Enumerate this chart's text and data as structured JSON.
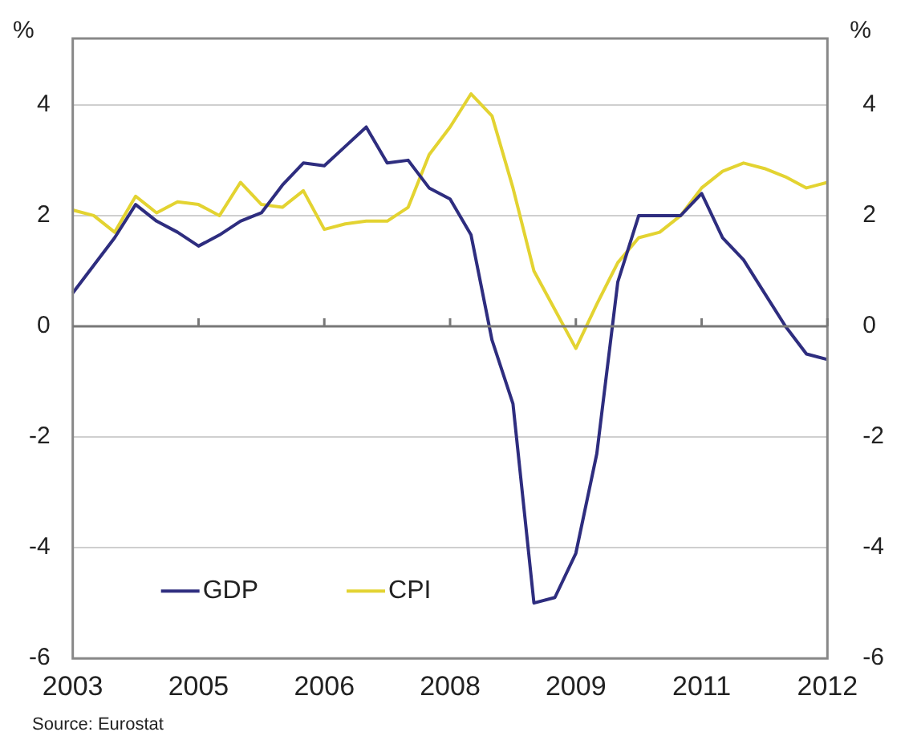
{
  "chart_data": {
    "type": "line",
    "ylabel": "%",
    "y2label": "%",
    "categories": [
      "2003",
      null,
      null,
      null,
      null,
      null,
      "2005",
      null,
      null,
      null,
      null,
      null,
      "2006",
      null,
      null,
      null,
      null,
      null,
      "2008",
      null,
      null,
      null,
      null,
      null,
      "2009",
      null,
      null,
      null,
      null,
      null,
      "2011",
      null,
      null,
      null,
      null,
      null,
      "2012"
    ],
    "series": [
      {
        "name": "GDP",
        "color": "#2e2d7f",
        "values": [
          0.6,
          1.1,
          1.6,
          2.2,
          1.9,
          1.7,
          1.45,
          1.65,
          1.9,
          2.05,
          2.55,
          2.95,
          2.9,
          3.25,
          3.6,
          2.95,
          3.0,
          2.5,
          2.3,
          1.65,
          -0.25,
          -1.4,
          -5.0,
          -4.9,
          -4.1,
          -2.3,
          0.8,
          2.0,
          2.0,
          2.0,
          2.4,
          1.6,
          1.2,
          0.6,
          0.0,
          -0.5,
          -0.6
        ]
      },
      {
        "name": "CPI",
        "color": "#e3d331",
        "values": [
          2.1,
          2.0,
          1.7,
          2.35,
          2.05,
          2.25,
          2.2,
          2.0,
          2.6,
          2.2,
          2.15,
          2.45,
          1.75,
          1.85,
          1.9,
          1.9,
          2.15,
          3.1,
          3.6,
          4.2,
          3.8,
          2.5,
          1.0,
          0.3,
          -0.4,
          0.4,
          1.15,
          1.6,
          1.7,
          2.0,
          2.5,
          2.8,
          2.95,
          2.85,
          2.7,
          2.5,
          2.6
        ]
      }
    ],
    "ylim": [
      -6,
      5.2
    ],
    "yticks": [
      -6,
      -4,
      -2,
      0,
      2,
      4
    ],
    "y2lim": [
      -6,
      5.2
    ],
    "y2ticks": [
      -6,
      -4,
      -2,
      0,
      2,
      4
    ],
    "grid": "y",
    "legend": "bottom left",
    "marker": "none",
    "line_style": "solid",
    "annotations": [
      "Source: Eurostat"
    ]
  }
}
